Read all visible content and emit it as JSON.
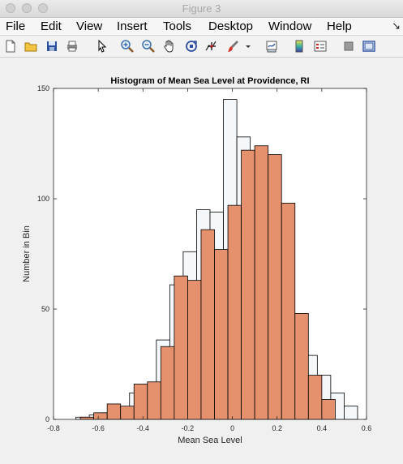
{
  "window": {
    "title": "Figure 3"
  },
  "menu": {
    "items": [
      "File",
      "Edit",
      "View",
      "Insert",
      "Tools",
      "Desktop",
      "Window",
      "Help"
    ],
    "extra_icon": "dock-arrow-icon"
  },
  "toolbar": {
    "buttons": [
      "new-figure-icon",
      "open-file-icon",
      "save-icon",
      "print-icon",
      "pointer-icon",
      "zoom-in-icon",
      "zoom-out-icon",
      "pan-hand-icon",
      "rotate-3d-icon",
      "data-cursor-icon",
      "brush-icon",
      "brush-dropdown-icon",
      "link-plot-icon",
      "insert-colorbar-icon",
      "insert-legend-icon",
      "hide-plot-tools-icon",
      "show-plot-tools-icon"
    ]
  },
  "chart_data": {
    "type": "bar",
    "title": "Histogram of Mean Sea Level at Providence, RI",
    "xlabel": "Mean Sea Level",
    "ylabel": "Number in Bin",
    "xlim": [
      -0.8,
      0.6
    ],
    "ylim": [
      0,
      150
    ],
    "xticks": [
      "-0.8",
      "-0.6",
      "-0.4",
      "-0.2",
      "0",
      "0.2",
      "0.4",
      "0.6"
    ],
    "yticks": [
      "0",
      "50",
      "100",
      "150"
    ],
    "bin_width": 0.06,
    "colors": {
      "series1": "#f4f8fb",
      "series2": "#e6916e"
    },
    "series": [
      {
        "bin_starts": [
          -0.7,
          -0.64,
          -0.58,
          -0.52,
          -0.46,
          -0.4,
          -0.34,
          -0.28,
          -0.22,
          -0.16,
          -0.1,
          -0.04,
          0.02,
          0.08,
          0.14,
          0.2,
          0.26,
          0.32,
          0.38,
          0.44,
          0.5
        ],
        "values": [
          1,
          2,
          3,
          5,
          12,
          15,
          36,
          61,
          76,
          95,
          94,
          145,
          128,
          103,
          90,
          52,
          48,
          29,
          20,
          12,
          6
        ]
      },
      {
        "bin_starts": [
          -0.68,
          -0.62,
          -0.56,
          -0.5,
          -0.44,
          -0.38,
          -0.32,
          -0.26,
          -0.2,
          -0.14,
          -0.08,
          -0.02,
          0.04,
          0.1,
          0.16,
          0.22,
          0.28,
          0.34,
          0.4
        ],
        "values": [
          1,
          3,
          7,
          6,
          16,
          17,
          33,
          65,
          63,
          86,
          77,
          97,
          122,
          124,
          120,
          98,
          48,
          20,
          9
        ]
      }
    ]
  }
}
